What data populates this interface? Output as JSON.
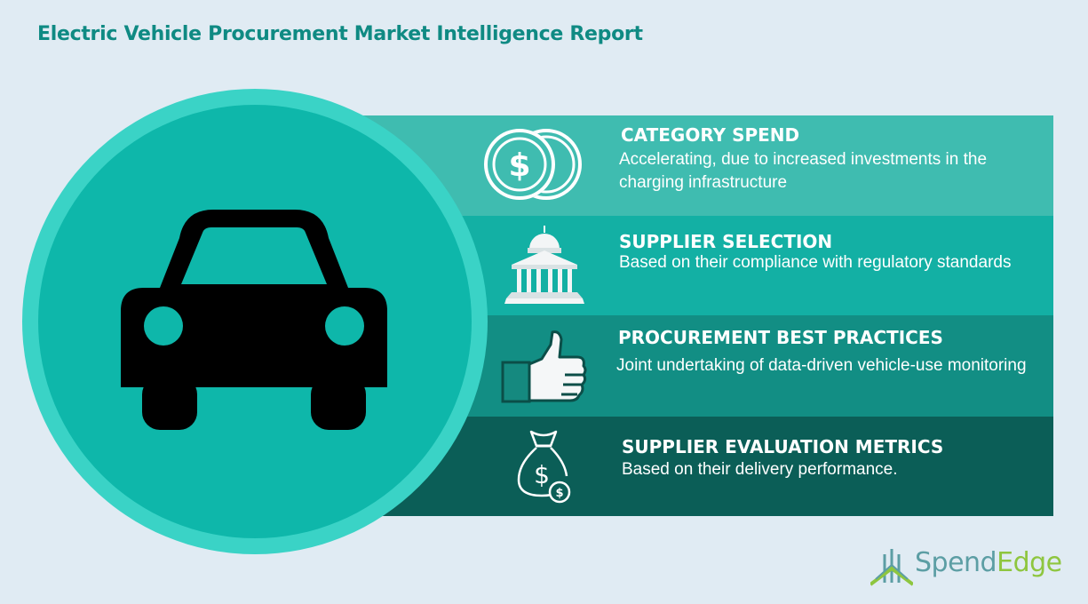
{
  "title": "Electric Vehicle Procurement Market Intelligence Report",
  "rows": [
    {
      "heading": "CATEGORY SPEND",
      "description": "Accelerating, due to increased investments in the charging infrastructure",
      "icon": "coins-dollar-icon",
      "color": "#3fbcb0"
    },
    {
      "heading": "SUPPLIER SELECTION",
      "description": "Based on their compliance with regulatory standards",
      "icon": "government-building-icon",
      "color": "#13b0a4"
    },
    {
      "heading": "PROCUREMENT BEST PRACTICES",
      "description": "Joint undertaking of data-driven vehicle-use monitoring",
      "icon": "thumbs-up-icon",
      "color": "#128e84"
    },
    {
      "heading": "SUPPLIER EVALUATION METRICS",
      "description": "Based on their delivery performance.",
      "icon": "money-bag-icon",
      "color": "#0b5e57"
    }
  ],
  "hero_icon": "car-icon",
  "brand": {
    "name_part1": "Spend",
    "name_part2": "Edge",
    "primary_color": "#5c9ea4",
    "accent_color": "#8ec63f"
  }
}
